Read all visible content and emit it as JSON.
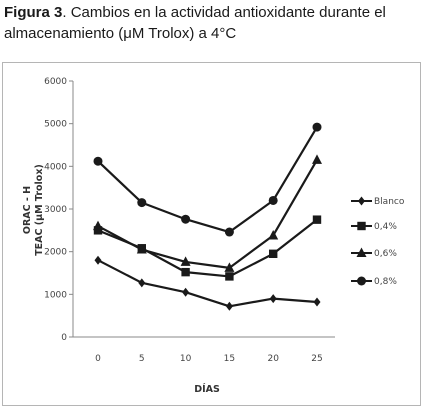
{
  "caption": {
    "figure_label": "Figura 3",
    "text": ". Cambios en la actividad antioxidante durante el almacenamiento (μM Trolox) a 4°C"
  },
  "chart_data": {
    "type": "line",
    "x": [
      0,
      5,
      10,
      15,
      20,
      25
    ],
    "xlabel": "DÍAS",
    "ylabel_line1": "ORAC - H",
    "ylabel_line2": "TEAC (μM Trolox)",
    "ylim": [
      0,
      6000
    ],
    "yticks": [
      0,
      1000,
      2000,
      3000,
      4000,
      5000,
      6000
    ],
    "grid": false,
    "legend_position": "right",
    "colors": {
      "line": "#1a1a1a",
      "axis": "#888888"
    },
    "series": [
      {
        "name": "Blanco",
        "marker": "diamond",
        "values": [
          1800,
          1270,
          1050,
          720,
          900,
          820
        ]
      },
      {
        "name": "0,4%",
        "marker": "square",
        "values": [
          2500,
          2080,
          1520,
          1420,
          1950,
          2750
        ]
      },
      {
        "name": "0,6%",
        "marker": "triangle",
        "values": [
          2600,
          2050,
          1760,
          1620,
          2380,
          4150
        ]
      },
      {
        "name": "0,8%",
        "marker": "circle",
        "values": [
          4120,
          3150,
          2760,
          2460,
          3200,
          4920
        ]
      }
    ]
  }
}
